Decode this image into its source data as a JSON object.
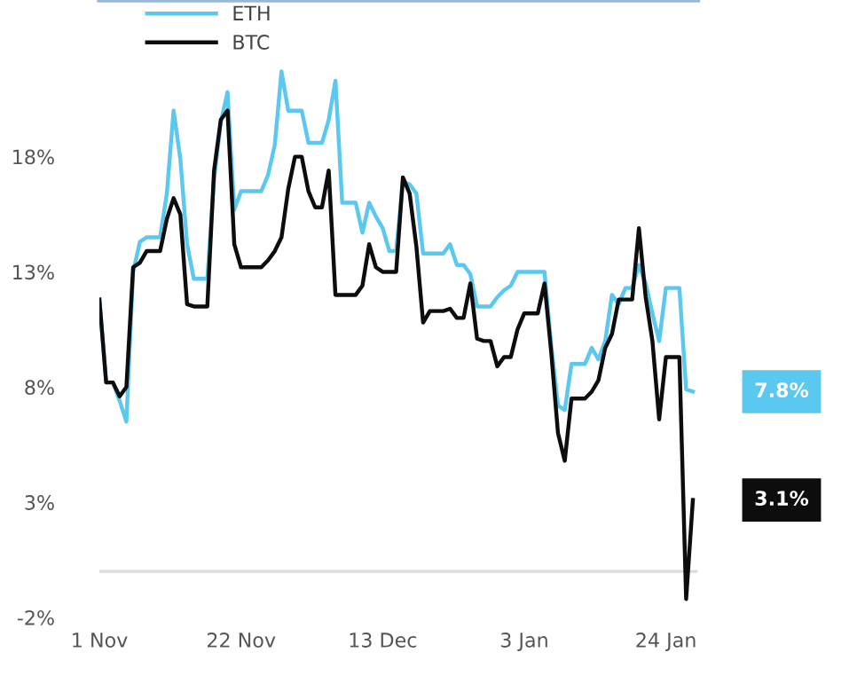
{
  "chart_data": {
    "type": "line",
    "categories": [
      "1 Nov",
      null,
      null,
      null,
      null,
      null,
      null,
      null,
      null,
      null,
      null,
      null,
      null,
      null,
      null,
      null,
      null,
      null,
      null,
      null,
      null,
      "22 Nov",
      null,
      null,
      null,
      null,
      null,
      null,
      null,
      null,
      null,
      null,
      null,
      null,
      null,
      null,
      null,
      null,
      null,
      null,
      null,
      null,
      "13 Dec",
      null,
      null,
      null,
      null,
      null,
      null,
      null,
      null,
      null,
      null,
      null,
      null,
      null,
      null,
      null,
      null,
      null,
      null,
      null,
      null,
      "3 Jan",
      null,
      null,
      null,
      null,
      null,
      null,
      null,
      null,
      null,
      null,
      null,
      null,
      null,
      null,
      null,
      null,
      null,
      null,
      null,
      null,
      "24 Jan",
      null,
      null,
      null,
      null
    ],
    "series": [
      {
        "name": "ETH",
        "color": "#5bc8f0",
        "values": [
          11.8,
          8.2,
          8.2,
          7.4,
          6.5,
          13.0,
          14.3,
          14.5,
          14.5,
          14.5,
          16.4,
          20.0,
          17.9,
          14.2,
          12.7,
          12.7,
          12.7,
          17.0,
          19.5,
          20.8,
          15.7,
          16.5,
          16.5,
          16.5,
          16.5,
          17.2,
          18.5,
          21.7,
          20.0,
          20.0,
          20.0,
          18.6,
          18.6,
          18.6,
          19.6,
          21.3,
          16.0,
          16.0,
          16.0,
          14.7,
          16.0,
          15.4,
          14.9,
          13.9,
          13.9,
          16.9,
          16.8,
          16.4,
          13.8,
          13.8,
          13.8,
          13.8,
          14.2,
          13.3,
          13.3,
          12.9,
          11.5,
          11.5,
          11.5,
          11.9,
          12.2,
          12.4,
          13.0,
          13.0,
          13.0,
          13.0,
          13.0,
          9.8,
          7.2,
          7.0,
          9.0,
          9.0,
          9.0,
          9.7,
          9.2,
          10.0,
          12.0,
          11.6,
          12.3,
          12.3,
          13.3,
          12.5,
          11.2,
          10.0,
          12.3,
          12.3,
          12.3,
          7.9,
          7.8
        ]
      },
      {
        "name": "BTC",
        "color": "#0d0d0d",
        "values": [
          11.8,
          8.2,
          8.2,
          7.6,
          8.0,
          13.2,
          13.4,
          13.9,
          13.9,
          13.9,
          15.3,
          16.2,
          15.5,
          11.6,
          11.5,
          11.5,
          11.5,
          17.4,
          19.6,
          20.0,
          14.2,
          13.2,
          13.2,
          13.2,
          13.2,
          13.5,
          13.9,
          14.5,
          16.6,
          18.0,
          18.0,
          16.5,
          15.8,
          15.8,
          17.4,
          12.0,
          12.0,
          12.0,
          12.0,
          12.4,
          14.2,
          13.2,
          13.0,
          13.0,
          13.0,
          17.1,
          16.4,
          14.1,
          10.8,
          11.3,
          11.3,
          11.3,
          11.4,
          11.0,
          11.0,
          12.5,
          10.1,
          10.0,
          10.0,
          8.9,
          9.3,
          9.3,
          10.5,
          11.2,
          11.2,
          11.2,
          12.5,
          9.5,
          6.0,
          4.8,
          7.5,
          7.5,
          7.5,
          7.8,
          8.3,
          9.7,
          10.3,
          11.8,
          11.8,
          11.8,
          14.9,
          11.9,
          10.0,
          6.6,
          9.3,
          9.3,
          9.3,
          -1.2,
          3.1
        ]
      }
    ],
    "ylim": [
      -2,
      24.8
    ],
    "yticks": [
      {
        "value": -2,
        "label": "-2%"
      },
      {
        "value": 3,
        "label": "3%"
      },
      {
        "value": 8,
        "label": "8%"
      },
      {
        "value": 13,
        "label": "13%"
      },
      {
        "value": 18,
        "label": "18%"
      }
    ],
    "ref_lines": [
      {
        "axis": "y",
        "value": 0,
        "color": "#dcdcdc"
      }
    ],
    "annotations": [
      "7.8%",
      "3.1%"
    ],
    "legend": "top left",
    "grid": false,
    "marker": "none",
    "line_style": "solid"
  }
}
